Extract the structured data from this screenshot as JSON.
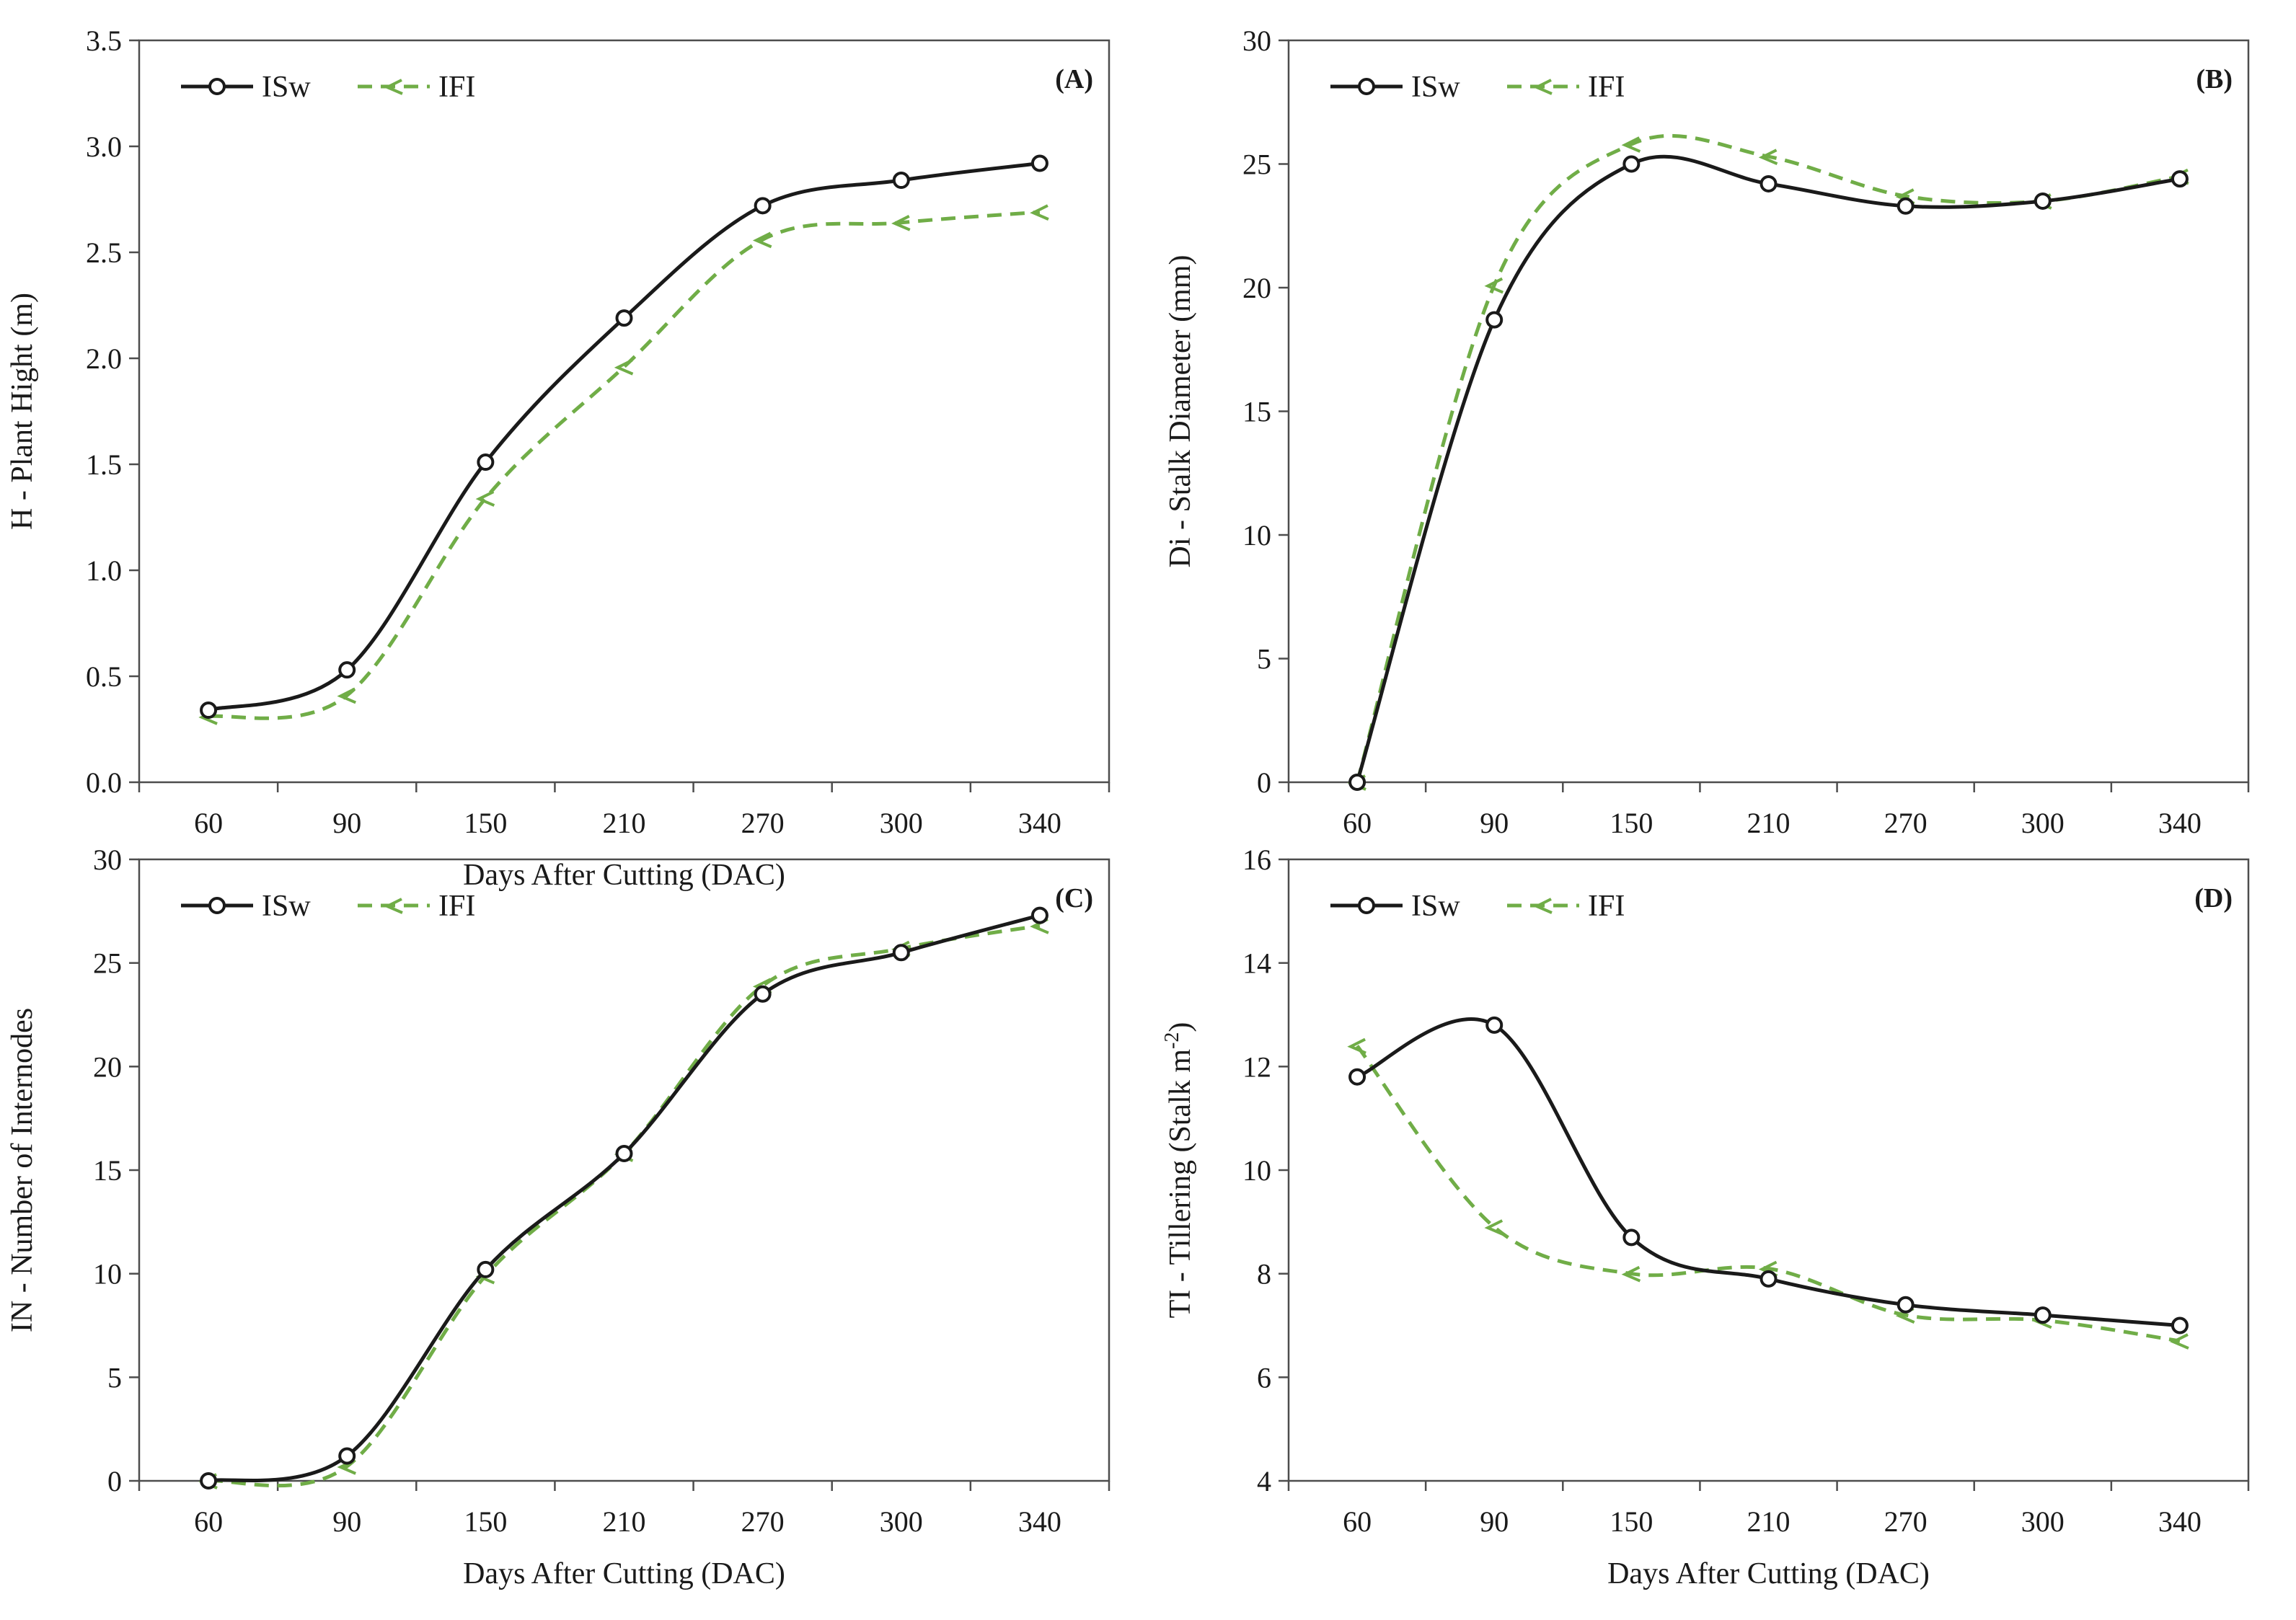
{
  "chart_data": [
    {
      "id": "A",
      "type": "line",
      "panel_label": "(A)",
      "ylabel": "H - Plant Hight (m)",
      "xlabel": "Days After Cutting (DAC)",
      "categories": [
        "60",
        "90",
        "150",
        "210",
        "270",
        "300",
        "340"
      ],
      "ylim": [
        0,
        3.5
      ],
      "yticks": [
        "0.0",
        "0.5",
        "1.0",
        "1.5",
        "2.0",
        "2.5",
        "3.0",
        "3.5"
      ],
      "legend_position": "top-left",
      "series": [
        {
          "name": "ISw",
          "values": [
            0.34,
            0.53,
            1.51,
            2.19,
            2.72,
            2.84,
            2.92
          ]
        },
        {
          "name": "IFI",
          "values": [
            0.31,
            0.41,
            1.34,
            1.96,
            2.56,
            2.64,
            2.69
          ]
        }
      ]
    },
    {
      "id": "B",
      "type": "line",
      "panel_label": "(B)",
      "ylabel": "Di - Stalk Diameter (mm)",
      "xlabel": "",
      "categories": [
        "60",
        "90",
        "150",
        "210",
        "270",
        "300",
        "340"
      ],
      "ylim": [
        0,
        30
      ],
      "yticks": [
        "0",
        "5",
        "10",
        "15",
        "20",
        "25",
        "30"
      ],
      "legend_position": "top-left",
      "series": [
        {
          "name": "ISw",
          "values": [
            0.0,
            18.7,
            25.0,
            24.2,
            23.3,
            23.5,
            24.4
          ]
        },
        {
          "name": "IFI",
          "values": [
            0.0,
            20.1,
            25.8,
            25.3,
            23.7,
            23.5,
            24.5
          ]
        }
      ]
    },
    {
      "id": "C",
      "type": "line",
      "panel_label": "(C)",
      "ylabel": "IN - Number of Internodes",
      "xlabel": "Days After Cutting (DAC)",
      "categories": [
        "60",
        "90",
        "150",
        "210",
        "270",
        "300",
        "340"
      ],
      "ylim": [
        0,
        30
      ],
      "yticks": [
        "0",
        "5",
        "10",
        "15",
        "20",
        "25",
        "30"
      ],
      "legend_position": "top-left",
      "series": [
        {
          "name": "ISw",
          "values": [
            0.0,
            1.2,
            10.2,
            15.8,
            23.5,
            25.5,
            27.3
          ]
        },
        {
          "name": "IFI",
          "values": [
            0.0,
            0.7,
            9.9,
            15.8,
            23.9,
            25.7,
            26.8
          ]
        }
      ]
    },
    {
      "id": "D",
      "type": "line",
      "panel_label": "(D)",
      "ylabel_main": "TI - Tillering  (Stalk  m",
      "ylabel_sup": "-2",
      "ylabel_close": ")",
      "xlabel": "Days After Cutting (DAC)",
      "categories": [
        "60",
        "90",
        "150",
        "210",
        "270",
        "300",
        "340"
      ],
      "ylim": [
        4,
        16
      ],
      "yticks": [
        "4",
        "6",
        "8",
        "10",
        "12",
        "14",
        "16"
      ],
      "legend_position": "top-left",
      "series": [
        {
          "name": "ISw",
          "values": [
            11.8,
            12.8,
            8.7,
            7.9,
            7.4,
            7.2,
            7.0
          ]
        },
        {
          "name": "IFI",
          "values": [
            12.4,
            8.9,
            8.0,
            8.1,
            7.2,
            7.1,
            6.7
          ]
        }
      ]
    }
  ],
  "colors": {
    "isw": "#1a1a1a",
    "ifi": "#70ad47",
    "axis": "#4d4d4d"
  }
}
